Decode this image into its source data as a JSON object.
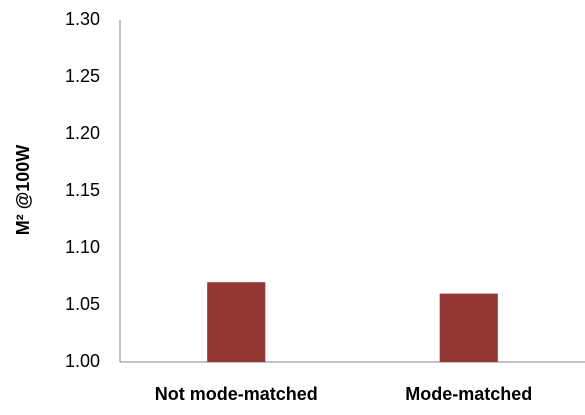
{
  "chart_data": {
    "type": "bar",
    "y_label": "M² @100W",
    "categories": [
      "Not mode-matched",
      "Mode-matched"
    ],
    "values": [
      1.07,
      1.06
    ],
    "color": "#943634",
    "ylim": [
      1.0,
      1.3
    ],
    "yticks": [
      {
        "value": 1.0,
        "label": "1.00"
      },
      {
        "value": 1.05,
        "label": "1.05"
      },
      {
        "value": 1.1,
        "label": "1.10"
      },
      {
        "value": 1.15,
        "label": "1.15"
      },
      {
        "value": 1.2,
        "label": "1.20"
      },
      {
        "value": 1.25,
        "label": "1.25"
      },
      {
        "value": 1.3,
        "label": "1.30"
      }
    ],
    "grid": false
  }
}
